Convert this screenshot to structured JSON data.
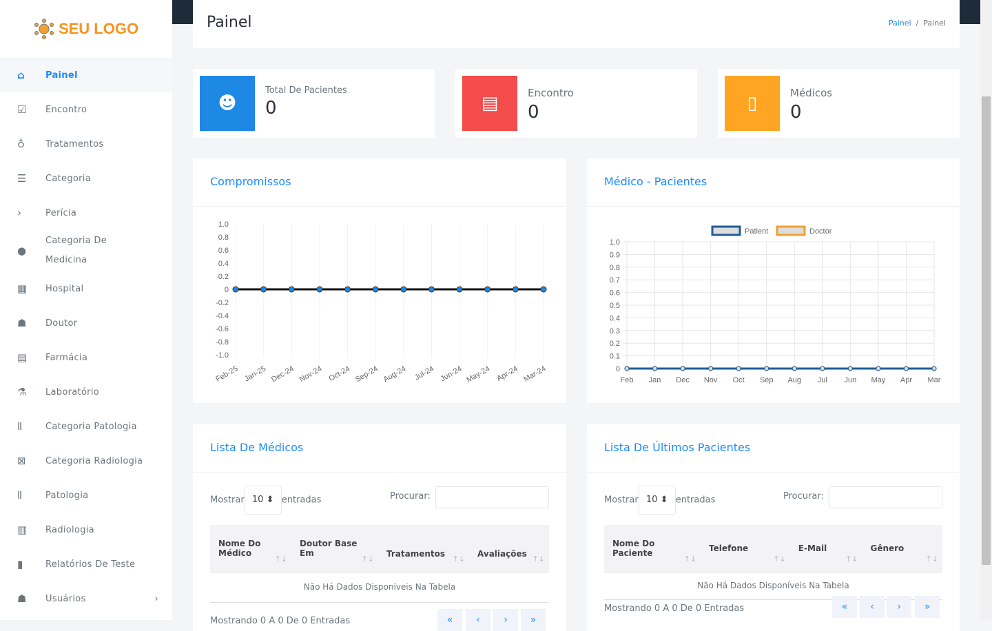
{
  "logo": {
    "text": "SEU LOGO"
  },
  "sidebar": {
    "items": [
      {
        "label": "Painel",
        "icon": "home-icon",
        "active": true
      },
      {
        "label": "Encontro",
        "icon": "calendar-check-icon"
      },
      {
        "label": "Tratamentos",
        "icon": "stethoscope-icon"
      },
      {
        "label": "Categoria",
        "icon": "list-icon"
      },
      {
        "label": "Perícia",
        "icon": "chevron-right-icon"
      },
      {
        "label": "Categoria De Medicina",
        "icon": "pills-icon"
      },
      {
        "label": "Hospital",
        "icon": "hospital-icon"
      },
      {
        "label": "Doutor",
        "icon": "user-doctor-icon"
      },
      {
        "label": "Farmácia",
        "icon": "prescription-icon"
      },
      {
        "label": "Laboratório",
        "icon": "flask-icon"
      },
      {
        "label": "Categoria Patologia",
        "icon": "vials-icon"
      },
      {
        "label": "Categoria Radiologia",
        "icon": "x-ray-icon"
      },
      {
        "label": "Patologia",
        "icon": "vials-icon"
      },
      {
        "label": "Radiologia",
        "icon": "x-ray-machine-icon"
      },
      {
        "label": "Relatórios De Teste",
        "icon": "file-icon"
      },
      {
        "label": "Usuários",
        "icon": "users-icon"
      }
    ]
  },
  "header": {
    "title": "Painel",
    "breadcrumb": [
      "Painel",
      "Painel"
    ]
  },
  "stats": [
    {
      "label": "Total De Pacientes",
      "value": "0",
      "color": "#1e88e5",
      "icon": "user-icon"
    },
    {
      "label": "Encontro",
      "value": "0",
      "color": "#f44b4b",
      "icon": "newspaper-icon"
    },
    {
      "label": "Médicos",
      "value": "0",
      "color": "#ffa523",
      "icon": "file-icon"
    }
  ],
  "panels": {
    "appointments": "Compromissos",
    "doctor_patients": "Médico - Pacientes",
    "doctors_list": "Lista De Médicos",
    "patients_list": "Lista De Últimos Pacientes"
  },
  "chart_data": [
    {
      "type": "line",
      "categories": [
        "Feb-25",
        "Jan-25",
        "Dec-24",
        "Nov-24",
        "Oct-24",
        "Sep-24",
        "Aug-24",
        "Jul-24",
        "Jun-24",
        "May-24",
        "Apr-24",
        "Mar-24"
      ],
      "values": [
        0,
        0,
        0,
        0,
        0,
        0,
        0,
        0,
        0,
        0,
        0,
        0
      ],
      "ylim": [
        -1,
        1
      ],
      "yticks": [
        "1.0",
        "0.8",
        "0.6",
        "0.4",
        "0.2",
        "0",
        "-0.2",
        "-0.4",
        "-0.6",
        "-0.8",
        "-1.0"
      ],
      "grid": true,
      "color": "#1e88e5"
    },
    {
      "type": "line",
      "categories": [
        "Feb",
        "Jan",
        "Dec",
        "Nov",
        "Oct",
        "Sep",
        "Aug",
        "Jul",
        "Jun",
        "May",
        "Apr",
        "Mar"
      ],
      "series": [
        {
          "name": "Patient",
          "values": [
            0,
            0,
            0,
            0,
            0,
            0,
            0,
            0,
            0,
            0,
            0,
            0
          ],
          "color": "#1f5c99"
        },
        {
          "name": "Doctor",
          "values": [
            0,
            0,
            0,
            0,
            0,
            0,
            0,
            0,
            0,
            0,
            0,
            0
          ],
          "color": "#f0a030"
        }
      ],
      "ylim": [
        0,
        1
      ],
      "yticks": [
        "1.0",
        "0.9",
        "0.8",
        "0.7",
        "0.6",
        "0.5",
        "0.4",
        "0.3",
        "0.2",
        "0.1",
        "0"
      ],
      "grid": true,
      "legend": "top"
    }
  ],
  "table": {
    "show": "Mostrar",
    "entries_select": "10",
    "entries": "entradas",
    "search": "Procurar:",
    "empty": "Não Há Dados Disponíveis Na Tabela"
  },
  "doctors_table": {
    "columns": [
      "Nome Do Médico",
      "Doutor Base Em",
      "Tratamentos",
      "Avaliações"
    ],
    "footer": "Mostrando 0 A 0 De 0 Entradas"
  },
  "patients_table": {
    "columns": [
      "Nome Do Paciente",
      "Telefone",
      "E-Mail",
      "Gênero"
    ],
    "footer": "Mostrando 0 A 0 De 0 Entradas"
  },
  "pagination": [
    "«",
    "‹",
    "›",
    "»"
  ]
}
